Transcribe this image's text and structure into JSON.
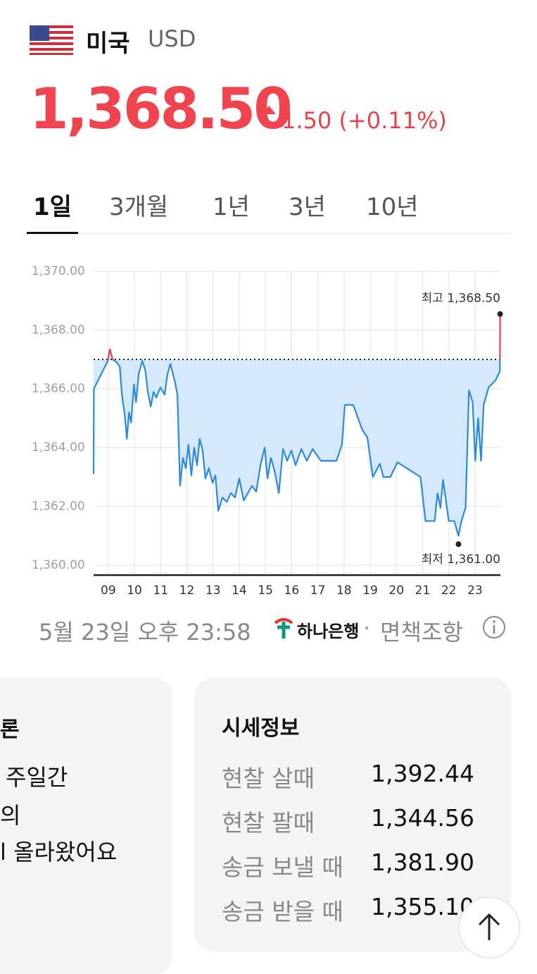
{
  "header": {
    "country": "미국",
    "currency": "USD",
    "price": "1,368.50",
    "change": "1.50",
    "change_pct": "(+0.11%)"
  },
  "tabs": [
    "1일",
    "3개월",
    "1년",
    "3년",
    "10년"
  ],
  "chart_data": {
    "type": "line",
    "x": [
      8.44,
      8.45,
      8.98,
      9.06,
      9.17,
      9.33,
      9.44,
      9.52,
      9.63,
      9.71,
      9.79,
      9.87,
      9.98,
      10.06,
      10.16,
      10.3,
      10.41,
      10.51,
      10.62,
      10.73,
      10.83,
      10.99,
      11.15,
      11.26,
      11.37,
      11.53,
      11.64,
      11.74,
      11.85,
      11.96,
      12.06,
      12.17,
      12.28,
      12.39,
      12.49,
      12.6,
      12.71,
      12.84,
      12.98,
      13.09,
      13.2,
      13.36,
      13.52,
      13.68,
      13.84,
      14.0,
      14.17,
      14.33,
      14.49,
      14.65,
      14.81,
      14.97,
      15.08,
      15.21,
      15.35,
      15.51,
      15.67,
      15.83,
      15.99,
      16.15,
      16.37,
      16.58,
      16.8,
      17.12,
      17.71,
      17.92,
      18.03,
      18.35,
      18.7,
      18.89,
      19.1,
      19.37,
      19.5,
      19.77,
      20.04,
      20.92,
      21.11,
      21.46,
      21.57,
      21.68,
      21.78,
      21.92,
      22.0,
      22.21,
      22.37,
      22.48,
      22.64,
      22.77,
      22.91,
      23.01,
      23.12,
      23.23,
      23.33,
      23.52,
      23.79,
      23.95,
      23.96
    ],
    "series": [
      {
        "color": "#2b8ae0",
        "values": [
          1363.1,
          1366.0,
          1366.95,
          1367.35,
          1367.0,
          1366.9,
          1366.75,
          1365.8,
          1365.1,
          1364.3,
          1365.2,
          1364.85,
          1366.15,
          1365.55,
          1366.5,
          1366.95,
          1366.65,
          1365.9,
          1365.4,
          1365.9,
          1365.7,
          1366.05,
          1365.8,
          1366.5,
          1366.85,
          1366.3,
          1365.8,
          1362.7,
          1363.65,
          1363.3,
          1364.1,
          1363.05,
          1364.0,
          1363.4,
          1364.3,
          1363.9,
          1362.95,
          1363.3,
          1362.8,
          1363.05,
          1361.85,
          1362.3,
          1362.15,
          1362.45,
          1362.3,
          1362.95,
          1362.2,
          1362.45,
          1362.7,
          1362.5,
          1363.4,
          1364.0,
          1362.95,
          1363.65,
          1363.2,
          1362.45,
          1363.95,
          1363.55,
          1363.9,
          1363.4,
          1363.95,
          1363.55,
          1363.95,
          1363.55,
          1363.55,
          1364.1,
          1365.45,
          1365.45,
          1364.6,
          1364.35,
          1363.0,
          1363.45,
          1363.0,
          1363.0,
          1363.5,
          1363.0,
          1361.5,
          1361.5,
          1362.45,
          1361.95,
          1362.9,
          1362.0,
          1361.5,
          1361.5,
          1361.0,
          1361.5,
          1361.95,
          1365.95,
          1365.55,
          1363.55,
          1365.0,
          1363.55,
          1365.45,
          1366.05,
          1366.3,
          1366.6,
          1368.5
        ]
      }
    ],
    "up_color": "#e8424a",
    "fill_color": "#d6e8fb",
    "reference_line": 1367,
    "xlim": [
      8.44,
      23.97
    ],
    "ylim": [
      1359.66,
      1370
    ],
    "xticks": [
      {
        "value": 9,
        "label": "09"
      },
      10,
      11,
      12,
      13,
      14,
      15,
      16,
      17,
      18,
      19,
      20,
      21,
      22,
      23
    ],
    "yticks": [
      {
        "value": 1360,
        "label": "1,360.00"
      },
      {
        "value": 1362,
        "label": "1,362.00"
      },
      {
        "value": 1364,
        "label": "1,364.00"
      },
      {
        "value": 1366,
        "label": "1,366.00"
      },
      {
        "value": 1368,
        "label": "1,368.00"
      },
      {
        "value": 1370,
        "label": "1,370.00"
      }
    ],
    "grid": true,
    "annotations": [
      {
        "label": "최고 1,368.50",
        "x": 23.96,
        "y": 1368.5
      },
      {
        "label": "최저 1,361.00",
        "x": 22.37,
        "y": 1361.0
      }
    ]
  },
  "timestamp": "5월 23일 오후 23:58",
  "source": {
    "bank": "하나은행",
    "separator": "·",
    "disclaimer": "면책조항"
  },
  "left_card": {
    "title": "론",
    "lines": [
      "주일간",
      "의",
      "l 올라왔어요"
    ]
  },
  "info_card": {
    "title": "시세정보",
    "rows": [
      [
        "현찰 살때",
        "1,392.44"
      ],
      [
        "현찰 팔때",
        "1,344.56"
      ],
      [
        "송금 보낼 때",
        "1,381.90"
      ],
      [
        "송금 받을 때",
        "1,355.10"
      ]
    ]
  }
}
